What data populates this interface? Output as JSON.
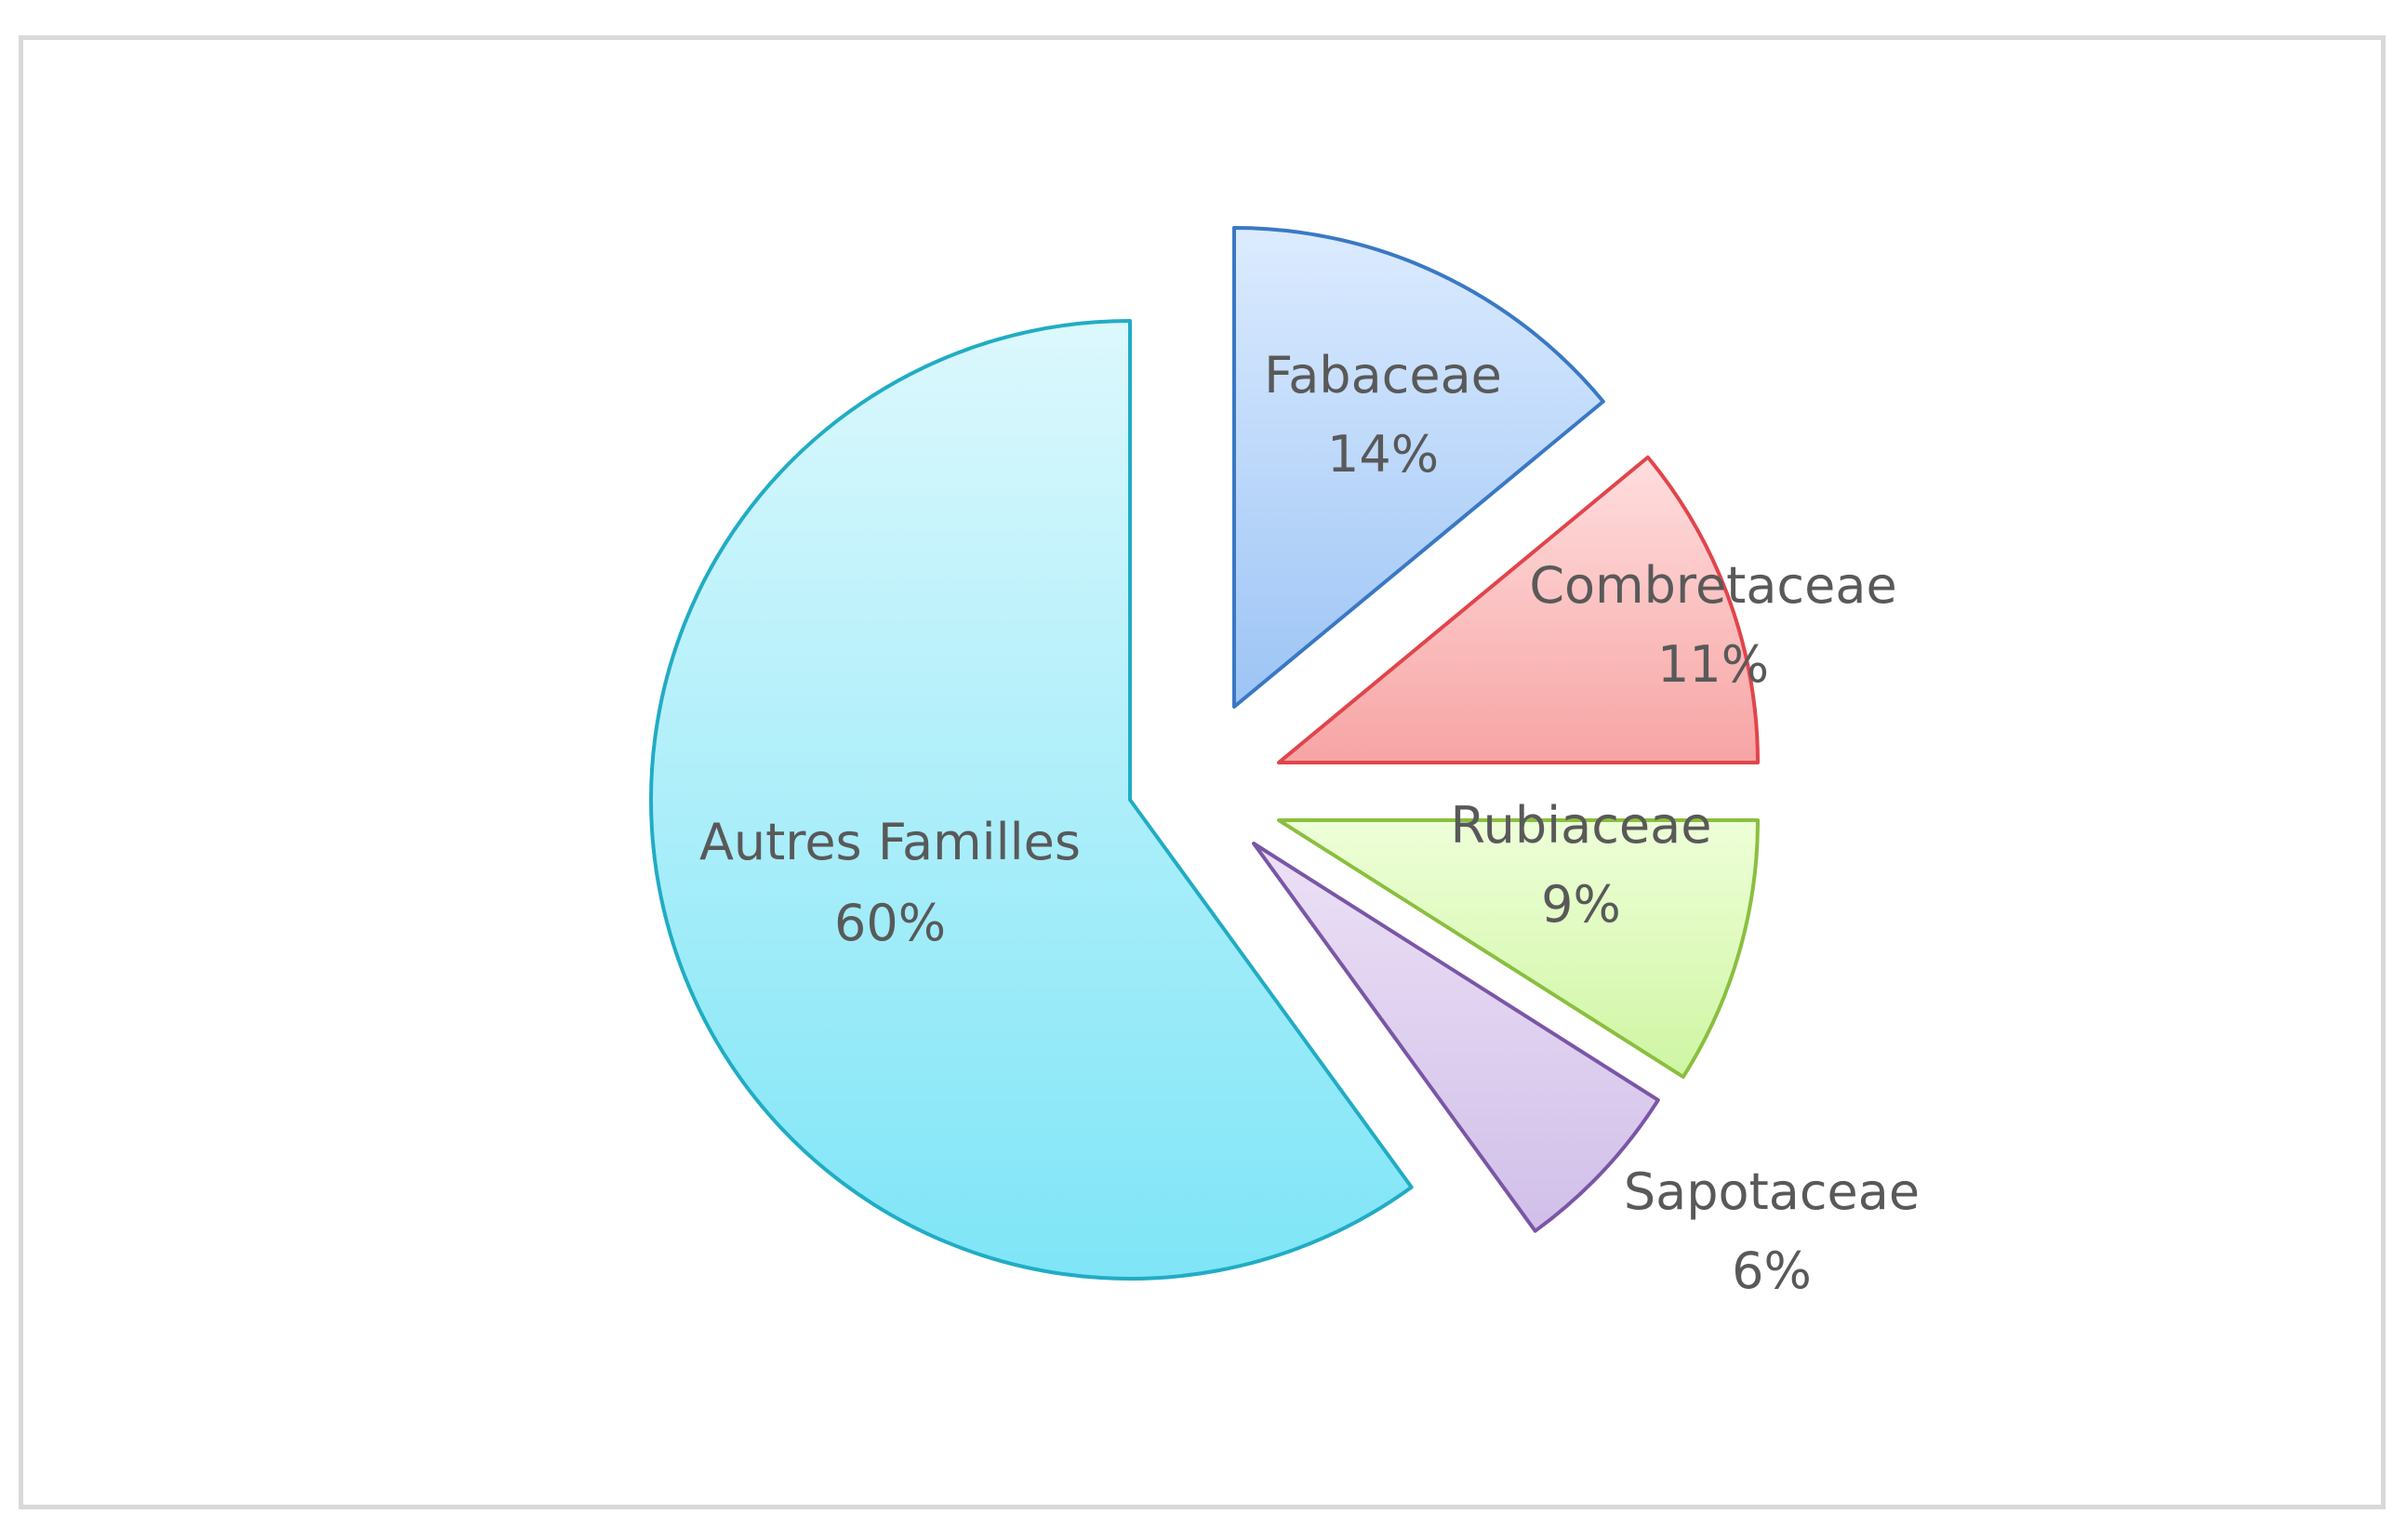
{
  "chart_data": {
    "type": "pie",
    "title": "",
    "exploded": true,
    "slices": [
      {
        "label": "Fabaceae",
        "value": 14,
        "display": "14%",
        "fill_light": "#dcebff",
        "fill_dark": "#9cc4f5",
        "stroke": "#3a78c4"
      },
      {
        "label": "Combretaceae",
        "value": 11,
        "display": "11%",
        "fill_light": "#ffdede",
        "fill_dark": "#f7a4a4",
        "stroke": "#e0454b"
      },
      {
        "label": "Rubiaceae",
        "value": 9,
        "display": "9%",
        "fill_light": "#eeffd8",
        "fill_dark": "#cff5a3",
        "stroke": "#8abf3f"
      },
      {
        "label": "Sapotaceae",
        "value": 6,
        "display": "6%",
        "fill_light": "#ece0f6",
        "fill_dark": "#d1bfe9",
        "stroke": "#7a56a6"
      },
      {
        "label": "Autres Familles",
        "value": 60,
        "display": "60%",
        "fill_light": "#dcf8fd",
        "fill_dark": "#7ee5f7",
        "stroke": "#21acc4"
      }
    ]
  }
}
